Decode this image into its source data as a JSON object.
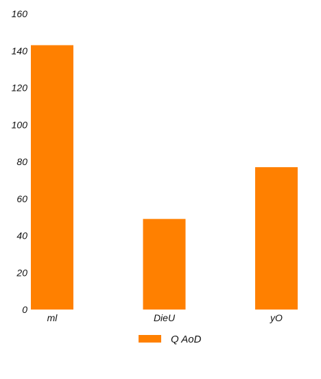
{
  "chart_data": {
    "type": "bar",
    "title": "",
    "xlabel": "",
    "ylabel": "",
    "categories": [
      "ml",
      "DieU",
      "yO"
    ],
    "series": [
      {
        "name": "Q AoD",
        "values": [
          143,
          49,
          77
        ],
        "color": "#ff8000"
      }
    ],
    "ylim": [
      0,
      160
    ],
    "yticks": [
      0,
      20,
      40,
      60,
      80,
      100,
      120,
      140,
      160
    ],
    "grid": false,
    "legend": "bottom-center"
  }
}
